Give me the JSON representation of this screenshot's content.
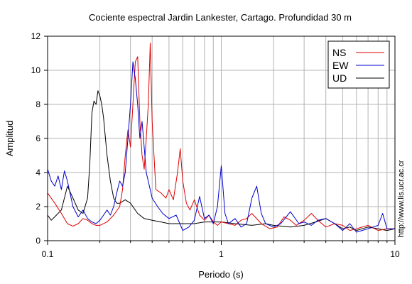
{
  "chart_data": {
    "type": "line",
    "title": "Cociente espectral Jardin Lankester, Cartago. Profundidad 30 m",
    "xlabel": "Periodo (s)",
    "ylabel": "Amplitud",
    "xscale": "log",
    "xlim": [
      0.1,
      10
    ],
    "ylim": [
      0,
      12
    ],
    "xticks": [
      0.1,
      1,
      10
    ],
    "xtick_labels": [
      "0.1",
      "1",
      "10"
    ],
    "yticks": [
      0,
      2,
      4,
      6,
      8,
      10,
      12
    ],
    "ytick_labels": [
      "0",
      "2",
      "4",
      "6",
      "8",
      "10",
      "12"
    ],
    "grid": true,
    "legend_position": "top-right",
    "side_note": "http://www.lis.ucr.ac.cr",
    "series": [
      {
        "name": "NS",
        "color": "#e00000",
        "x": [
          0.1,
          0.11,
          0.12,
          0.13,
          0.14,
          0.15,
          0.16,
          0.17,
          0.18,
          0.19,
          0.2,
          0.22,
          0.24,
          0.26,
          0.27,
          0.28,
          0.29,
          0.3,
          0.31,
          0.32,
          0.33,
          0.34,
          0.35,
          0.36,
          0.37,
          0.38,
          0.39,
          0.4,
          0.42,
          0.45,
          0.48,
          0.5,
          0.53,
          0.56,
          0.58,
          0.6,
          0.63,
          0.66,
          0.7,
          0.75,
          0.8,
          0.85,
          0.9,
          0.95,
          1.0,
          1.1,
          1.2,
          1.3,
          1.4,
          1.5,
          1.7,
          1.9,
          2.1,
          2.3,
          2.5,
          2.7,
          3.0,
          3.3,
          3.6,
          4.0,
          4.5,
          5.0,
          5.5,
          6.0,
          7.0,
          8.0,
          9.0,
          10.0
        ],
        "values": [
          2.8,
          2.2,
          1.6,
          1.0,
          0.85,
          1.0,
          1.3,
          1.2,
          1.0,
          0.9,
          0.9,
          1.1,
          1.5,
          2.0,
          3.0,
          5.0,
          6.5,
          5.5,
          8.0,
          10.5,
          10.8,
          7.0,
          5.0,
          4.2,
          6.0,
          8.0,
          11.6,
          7.0,
          3.0,
          2.8,
          2.5,
          3.0,
          2.4,
          4.0,
          5.4,
          3.5,
          2.2,
          1.8,
          2.4,
          1.5,
          1.2,
          1.5,
          1.1,
          0.9,
          1.1,
          1.0,
          0.9,
          1.2,
          1.3,
          1.6,
          1.0,
          0.7,
          0.8,
          1.4,
          1.2,
          0.9,
          1.2,
          1.6,
          1.2,
          0.8,
          1.0,
          0.9,
          0.6,
          0.7,
          0.9,
          0.6,
          0.7,
          0.7
        ]
      },
      {
        "name": "EW",
        "color": "#0000cc",
        "x": [
          0.1,
          0.105,
          0.11,
          0.115,
          0.12,
          0.125,
          0.13,
          0.14,
          0.15,
          0.16,
          0.17,
          0.18,
          0.19,
          0.2,
          0.21,
          0.22,
          0.23,
          0.24,
          0.25,
          0.26,
          0.27,
          0.28,
          0.29,
          0.3,
          0.31,
          0.32,
          0.33,
          0.34,
          0.35,
          0.37,
          0.4,
          0.43,
          0.46,
          0.5,
          0.55,
          0.6,
          0.65,
          0.7,
          0.75,
          0.8,
          0.85,
          0.9,
          0.95,
          1.0,
          1.05,
          1.1,
          1.2,
          1.3,
          1.4,
          1.5,
          1.6,
          1.7,
          1.8,
          2.0,
          2.2,
          2.5,
          2.8,
          3.0,
          3.3,
          3.6,
          4.0,
          4.5,
          5.0,
          5.5,
          6.0,
          7.0,
          8.0,
          8.5,
          9.0,
          10.0
        ],
        "values": [
          4.2,
          3.5,
          3.2,
          3.8,
          3.0,
          4.1,
          3.5,
          2.0,
          1.4,
          1.8,
          1.3,
          1.1,
          1.0,
          1.2,
          1.5,
          1.8,
          1.5,
          2.0,
          2.8,
          3.5,
          3.2,
          4.0,
          6.0,
          8.0,
          10.5,
          9.5,
          8.0,
          6.0,
          7.0,
          4.0,
          2.5,
          2.0,
          1.6,
          1.3,
          1.5,
          0.6,
          0.8,
          1.2,
          2.6,
          1.3,
          1.5,
          1.0,
          2.0,
          4.4,
          1.6,
          1.0,
          1.3,
          0.8,
          1.0,
          2.5,
          3.2,
          1.6,
          1.0,
          0.8,
          1.0,
          1.7,
          1.0,
          1.1,
          0.9,
          1.2,
          1.3,
          1.0,
          0.6,
          1.0,
          0.5,
          0.7,
          0.9,
          1.6,
          0.7,
          0.7
        ]
      },
      {
        "name": "UD",
        "color": "#000000",
        "x": [
          0.1,
          0.105,
          0.11,
          0.12,
          0.13,
          0.14,
          0.15,
          0.16,
          0.17,
          0.175,
          0.18,
          0.185,
          0.19,
          0.195,
          0.2,
          0.205,
          0.21,
          0.22,
          0.23,
          0.24,
          0.25,
          0.26,
          0.28,
          0.3,
          0.33,
          0.36,
          0.4,
          0.45,
          0.5,
          0.6,
          0.7,
          0.8,
          0.9,
          1.0,
          1.2,
          1.5,
          1.8,
          2.0,
          2.5,
          3.0,
          3.5,
          4.0,
          4.5,
          5.0,
          5.5,
          6.0,
          7.0,
          8.0,
          9.0,
          10.0
        ],
        "values": [
          1.5,
          1.2,
          1.4,
          1.8,
          3.2,
          2.5,
          1.8,
          1.6,
          2.5,
          4.5,
          7.5,
          8.2,
          8.0,
          8.8,
          8.5,
          8.0,
          7.2,
          5.0,
          3.5,
          2.5,
          2.2,
          2.2,
          2.4,
          2.2,
          1.6,
          1.3,
          1.2,
          1.1,
          1.0,
          1.0,
          1.0,
          1.1,
          1.1,
          1.1,
          1.0,
          0.9,
          1.0,
          0.9,
          0.8,
          0.9,
          1.1,
          1.3,
          1.0,
          0.7,
          0.8,
          0.6,
          0.8,
          0.7,
          0.6,
          0.7
        ]
      }
    ]
  }
}
